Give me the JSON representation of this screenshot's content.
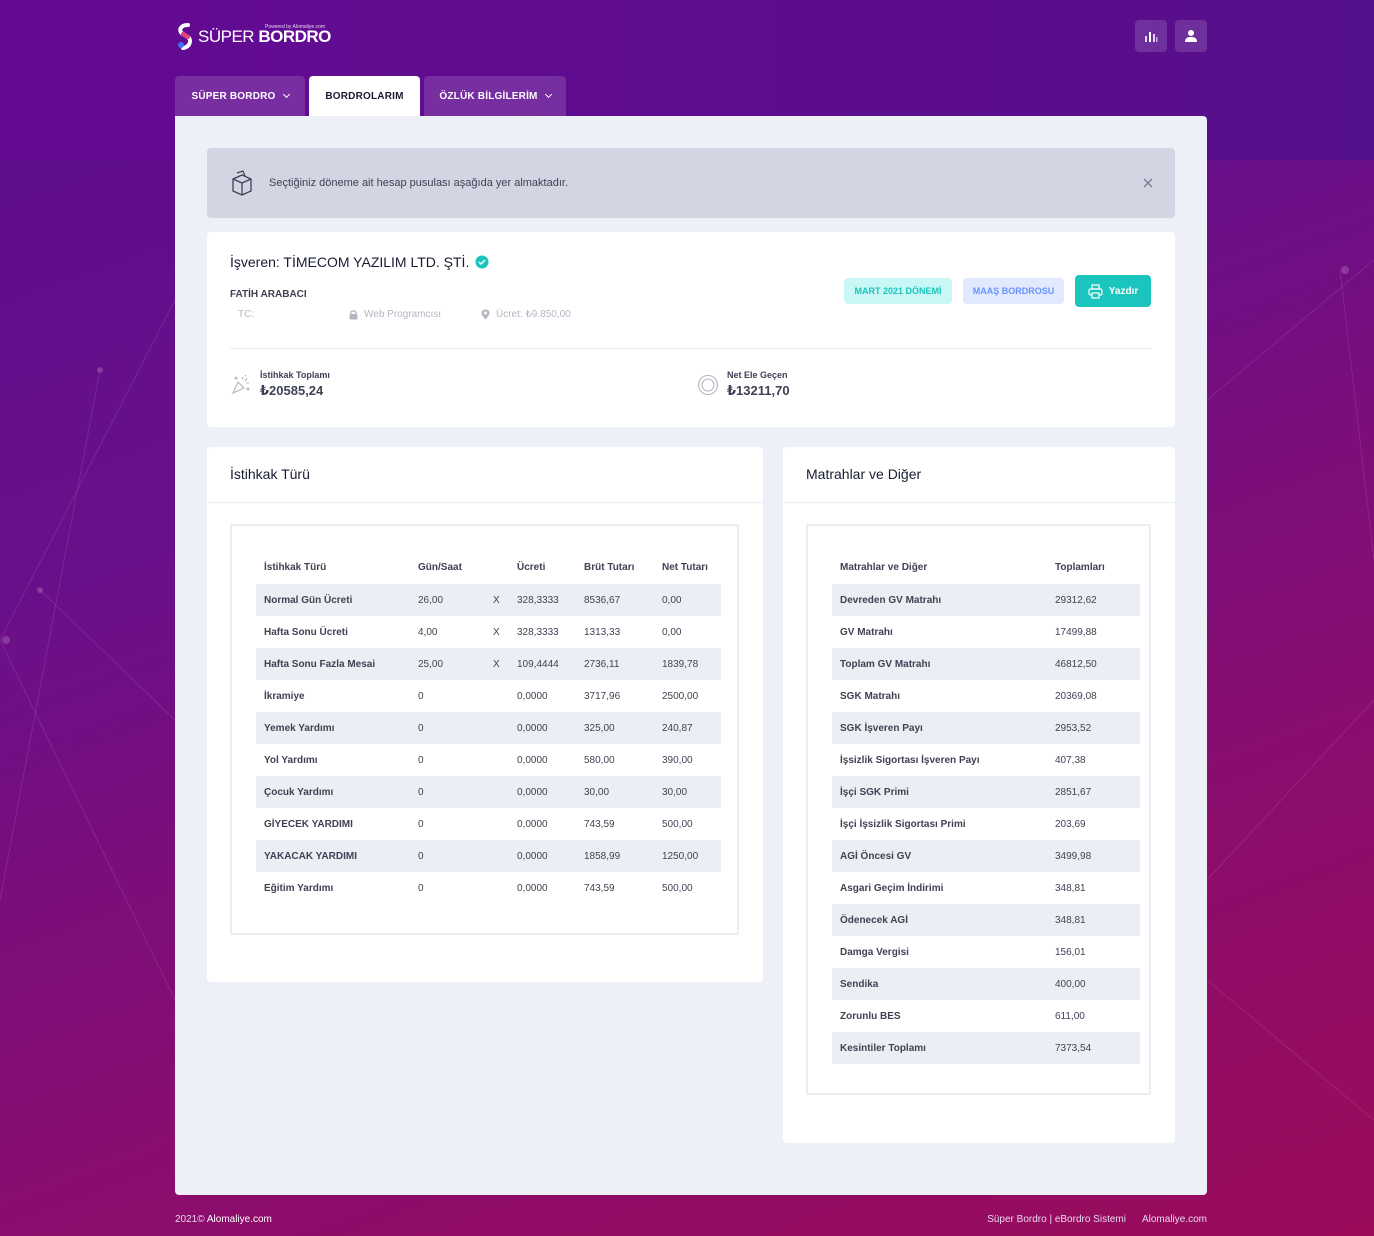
{
  "header": {
    "logo_text_light": "SÜPER",
    "logo_text_bold": "BORDRO",
    "logo_sub": "Powered by Alomaliye.com",
    "chart_button_icon": "bar-chart-icon",
    "user_button_icon": "user-icon"
  },
  "tabs": [
    {
      "label": "SÜPER BORDRO",
      "has_dropdown": true
    },
    {
      "label": "BORDROLARIM",
      "has_dropdown": false,
      "active": true
    },
    {
      "label": "ÖZLÜK BİLGİLERİM",
      "has_dropdown": true
    }
  ],
  "alert": {
    "text": "Seçtiğiniz döneme ait hesap pusulası aşağıda yer almaktadır."
  },
  "employee": {
    "title": "İşveren: TİMECOM YAZILIM LTD. ŞTİ.",
    "name": "FATİH ARABACI",
    "tc_label": "TC:",
    "position": "Web Programcısı",
    "wage": "Ücret: ₺9.850,00",
    "period_badge": "MART 2021 DÖNEMİ",
    "type_badge": "MAAŞ BORDROSU",
    "print_label": "Yazdır"
  },
  "stats": {
    "total_label": "İstihkak Toplamı",
    "total_value": "₺20585,24",
    "net_label": "Net Ele Geçen",
    "net_value": "₺13211,70"
  },
  "istihkak": {
    "title": "İstihkak Türü",
    "headers": [
      "İstihkak Türü",
      "Gün/Saat",
      "",
      "Ücreti",
      "Brüt Tutarı",
      "Net Tutarı"
    ],
    "rows": [
      {
        "name": "Normal Gün Ücreti",
        "gun": "26,00",
        "x": "X",
        "ucret": "328,3333",
        "brut": "8536,67",
        "net": "0,00"
      },
      {
        "name": "Hafta Sonu Ücreti",
        "gun": "4,00",
        "x": "X",
        "ucret": "328,3333",
        "brut": "1313,33",
        "net": "0,00"
      },
      {
        "name": "Hafta Sonu Fazla Mesai",
        "gun": "25,00",
        "x": "X",
        "ucret": "109,4444",
        "brut": "2736,11",
        "net": "1839,78"
      },
      {
        "name": "İkramiye",
        "gun": "0",
        "x": "",
        "ucret": "0,0000",
        "brut": "3717,96",
        "net": "2500,00"
      },
      {
        "name": "Yemek Yardımı",
        "gun": "0",
        "x": "",
        "ucret": "0,0000",
        "brut": "325,00",
        "net": "240,87"
      },
      {
        "name": "Yol Yardımı",
        "gun": "0",
        "x": "",
        "ucret": "0,0000",
        "brut": "580,00",
        "net": "390,00"
      },
      {
        "name": "Çocuk Yardımı",
        "gun": "0",
        "x": "",
        "ucret": "0,0000",
        "brut": "30,00",
        "net": "30,00"
      },
      {
        "name": "GİYECEK YARDIMI",
        "gun": "0",
        "x": "",
        "ucret": "0,0000",
        "brut": "743,59",
        "net": "500,00"
      },
      {
        "name": "YAKACAK YARDIMI",
        "gun": "0",
        "x": "",
        "ucret": "0,0000",
        "brut": "1858,99",
        "net": "1250,00"
      },
      {
        "name": "Eğitim Yardımı",
        "gun": "0",
        "x": "",
        "ucret": "0,0000",
        "brut": "743,59",
        "net": "500,00"
      }
    ]
  },
  "matrahlar": {
    "title": "Matrahlar ve Diğer",
    "headers": [
      "Matrahlar ve Diğer",
      "Toplamları"
    ],
    "rows": [
      {
        "name": "Devreden GV Matrahı",
        "value": "29312,62"
      },
      {
        "name": "GV Matrahı",
        "value": "17499,88"
      },
      {
        "name": "Toplam GV Matrahı",
        "value": "46812,50"
      },
      {
        "name": "SGK Matrahı",
        "value": "20369,08"
      },
      {
        "name": "SGK İşveren Payı",
        "value": "2953,52"
      },
      {
        "name": "İşsizlik Sigortası İşveren Payı",
        "value": "407,38"
      },
      {
        "name": "İşçi SGK Primi",
        "value": "2851,67"
      },
      {
        "name": "İşçi İşsizlik Sigortası Primi",
        "value": "203,69"
      },
      {
        "name": "AGİ Öncesi GV",
        "value": "3499,98"
      },
      {
        "name": "Asgari Geçim İndirimi",
        "value": "348,81"
      },
      {
        "name": "Ödenecek AGİ",
        "value": "348,81"
      },
      {
        "name": "Damga Vergisi",
        "value": "156,01"
      },
      {
        "name": "Sendika",
        "value": "400,00"
      },
      {
        "name": "Zorunlu BES",
        "value": "611,00"
      },
      {
        "name": "Kesintiler Toplamı",
        "value": "7373,54"
      }
    ]
  },
  "footer": {
    "year": "2021©",
    "brand": "Alomaliye.com",
    "link1": "Süper Bordro | eBordro Sistemi",
    "link2": "Alomaliye.com"
  },
  "colors": {
    "accent_teal": "#1bc5bd",
    "badge_blue": "#6993ff",
    "brand_purple": "#5d0c8f"
  }
}
